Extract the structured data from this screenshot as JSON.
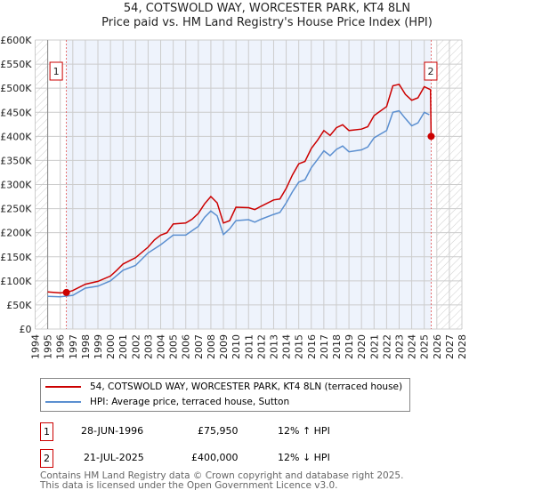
{
  "title_line1": "54, COTSWOLD WAY, WORCESTER PARK, KT4 8LN",
  "title_line2": "Price paid vs. HM Land Registry's House Price Index (HPI)",
  "chart_data": {
    "type": "line",
    "title": "54, COTSWOLD WAY, WORCESTER PARK, KT4 8LN - Price paid vs. HM Land Registry's House Price Index (HPI)",
    "xlim": [
      1994,
      2028
    ],
    "ylim": [
      0,
      600000
    ],
    "x_ticks": [
      "1994",
      "1995",
      "1996",
      "1997",
      "1998",
      "1999",
      "2000",
      "2001",
      "2002",
      "2003",
      "2004",
      "2005",
      "2006",
      "2007",
      "2008",
      "2009",
      "2010",
      "2011",
      "2012",
      "2013",
      "2014",
      "2015",
      "2016",
      "2017",
      "2018",
      "2019",
      "2020",
      "2021",
      "2022",
      "2023",
      "2024",
      "2025",
      "2026",
      "2027",
      "2028"
    ],
    "y_ticks": [
      "£0",
      "£50K",
      "£100K",
      "£150K",
      "£200K",
      "£250K",
      "£300K",
      "£350K",
      "£400K",
      "£450K",
      "£500K",
      "£550K",
      "£600K"
    ],
    "grid": true,
    "series": [
      {
        "name": "54, COTSWOLD WAY, WORCESTER PARK, KT4 8LN (terraced house)",
        "color": "#cc0000",
        "x": [
          1995,
          1996,
          1996.5,
          1997,
          1998,
          1999,
          2000,
          2000.5,
          2001,
          2002,
          2003,
          2003.5,
          2004,
          2004.5,
          2005,
          2006,
          2006.5,
          2007,
          2007.5,
          2008,
          2008.5,
          2009,
          2009.5,
          2010,
          2011,
          2011.5,
          2012,
          2013,
          2013.5,
          2014,
          2014.5,
          2015,
          2015.5,
          2016,
          2016.5,
          2017,
          2017.5,
          2018,
          2018.5,
          2019,
          2020,
          2020.5,
          2021,
          2022,
          2022.5,
          2023,
          2023.5,
          2024,
          2024.5,
          2025,
          2025.5,
          2025.55
        ],
        "values": [
          77000,
          75000,
          76000,
          80000,
          93000,
          99000,
          110000,
          122000,
          135000,
          148000,
          170000,
          185000,
          195000,
          200000,
          218000,
          220000,
          228000,
          240000,
          260000,
          275000,
          262000,
          220000,
          225000,
          253000,
          252000,
          248000,
          255000,
          268000,
          270000,
          292000,
          320000,
          343000,
          348000,
          375000,
          392000,
          412000,
          402000,
          418000,
          424000,
          412000,
          415000,
          420000,
          443000,
          462000,
          505000,
          508000,
          487000,
          475000,
          480000,
          503000,
          497000,
          400000
        ]
      },
      {
        "name": "HPI: Average price, terraced house, Sutton",
        "color": "#5b8fd0",
        "x": [
          1995,
          1996,
          1997,
          1998,
          1999,
          2000,
          2001,
          2002,
          2003,
          2004,
          2004.5,
          2005,
          2006,
          2007,
          2007.5,
          2008,
          2008.5,
          2009,
          2009.5,
          2010,
          2011,
          2011.5,
          2012,
          2013,
          2013.5,
          2014,
          2014.5,
          2015,
          2015.5,
          2016,
          2016.5,
          2017,
          2017.5,
          2018,
          2018.5,
          2019,
          2020,
          2020.5,
          2021,
          2022,
          2022.5,
          2023,
          2023.5,
          2024,
          2024.5,
          2025,
          2025.4
        ],
        "values": [
          68000,
          67000,
          70000,
          85000,
          89000,
          100000,
          122000,
          132000,
          158000,
          175000,
          185000,
          195000,
          195000,
          213000,
          232000,
          245000,
          235000,
          196000,
          208000,
          225000,
          227000,
          222000,
          228000,
          238000,
          242000,
          262000,
          285000,
          305000,
          310000,
          335000,
          352000,
          370000,
          360000,
          373000,
          380000,
          368000,
          372000,
          378000,
          397000,
          412000,
          450000,
          453000,
          437000,
          422000,
          428000,
          450000,
          445000
        ]
      }
    ],
    "annotations": [
      {
        "label": "1",
        "x": 1996.49,
        "value": 75950
      },
      {
        "label": "2",
        "x": 2025.55,
        "value": 400000
      }
    ],
    "legend_position": "below"
  },
  "legend": [
    {
      "label": "54, COTSWOLD WAY, WORCESTER PARK, KT4 8LN (terraced house)",
      "color": "#cc0000"
    },
    {
      "label": "HPI: Average price, terraced house, Sutton",
      "color": "#5b8fd0"
    }
  ],
  "transactions": [
    {
      "num": "1",
      "date": "28-JUN-1996",
      "price": "£75,950",
      "hpi": "12% ↑ HPI"
    },
    {
      "num": "2",
      "date": "21-JUL-2025",
      "price": "£400,000",
      "hpi": "12% ↓ HPI"
    }
  ],
  "footer_line1": "Contains HM Land Registry data © Crown copyright and database right 2025.",
  "footer_line2": "This data is licensed under the Open Government Licence v3.0."
}
